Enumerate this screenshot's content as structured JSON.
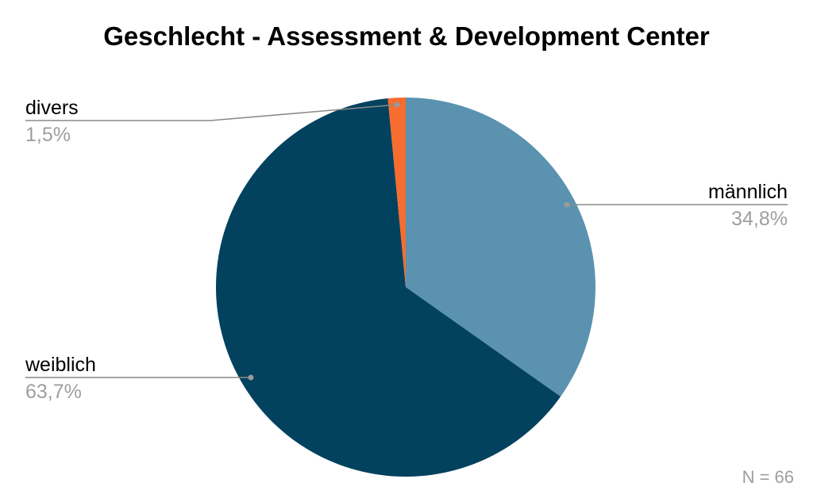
{
  "chart_data": {
    "type": "pie",
    "title": "Geschlecht - Assessment & Development Center",
    "note": "N = 66",
    "start_angle_deg": 0,
    "direction": "clockwise",
    "slices": [
      {
        "name": "männlich",
        "value": 34.8,
        "label": "34,8%",
        "color": "#5a92b0"
      },
      {
        "name": "weiblich",
        "value": 63.7,
        "label": "63,7%",
        "color": "#02425f"
      },
      {
        "name": "divers",
        "value": 1.5,
        "label": "1,5%",
        "color": "#f76c2f"
      }
    ]
  }
}
